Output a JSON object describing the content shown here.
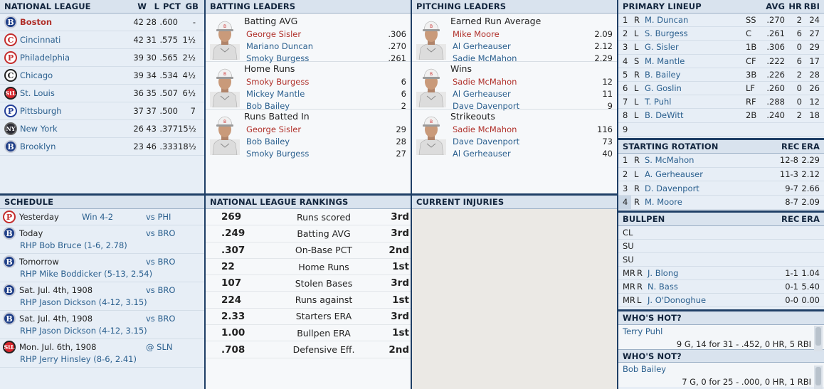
{
  "standings": {
    "title": "NATIONAL LEAGUE",
    "headers": {
      "w": "W",
      "l": "L",
      "pct": "PCT",
      "gb": "GB"
    },
    "teams": [
      {
        "name": "Boston",
        "logo": "B",
        "w": "42",
        "l": "28",
        "pct": ".600",
        "gb": "-"
      },
      {
        "name": "Cincinnati",
        "logo": "C",
        "w": "42",
        "l": "31",
        "pct": ".575",
        "gb": "1½"
      },
      {
        "name": "Philadelphia",
        "logo": "P",
        "w": "39",
        "l": "30",
        "pct": ".565",
        "gb": "2½"
      },
      {
        "name": "Chicago",
        "logo": "C",
        "w": "39",
        "l": "34",
        "pct": ".534",
        "gb": "4½"
      },
      {
        "name": "St. Louis",
        "logo": "StL",
        "w": "36",
        "l": "35",
        "pct": ".507",
        "gb": "6½"
      },
      {
        "name": "Pittsburgh",
        "logo": "P",
        "w": "37",
        "l": "37",
        "pct": ".500",
        "gb": "7"
      },
      {
        "name": "New York",
        "logo": "NY",
        "w": "26",
        "l": "43",
        "pct": ".377",
        "gb": "15½"
      },
      {
        "name": "Brooklyn",
        "logo": "B",
        "w": "23",
        "l": "46",
        "pct": ".333",
        "gb": "18½"
      }
    ]
  },
  "batting": {
    "title": "BATTING LEADERS",
    "cats": [
      {
        "name": "Batting AVG",
        "rows": [
          [
            "George Sisler",
            ".306"
          ],
          [
            "Mariano Duncan",
            ".270"
          ],
          [
            "Smoky Burgess",
            ".261"
          ]
        ]
      },
      {
        "name": "Home Runs",
        "rows": [
          [
            "Smoky Burgess",
            "6"
          ],
          [
            "Mickey Mantle",
            "6"
          ],
          [
            "Bob Bailey",
            "2"
          ]
        ]
      },
      {
        "name": "Runs Batted In",
        "rows": [
          [
            "George Sisler",
            "29"
          ],
          [
            "Bob Bailey",
            "28"
          ],
          [
            "Smoky Burgess",
            "27"
          ]
        ]
      }
    ]
  },
  "pitching": {
    "title": "PITCHING LEADERS",
    "cats": [
      {
        "name": "Earned Run Average",
        "rows": [
          [
            "Mike Moore",
            "2.09"
          ],
          [
            "Al Gerheauser",
            "2.12"
          ],
          [
            "Sadie McMahon",
            "2.29"
          ]
        ]
      },
      {
        "name": "Wins",
        "rows": [
          [
            "Sadie McMahon",
            "12"
          ],
          [
            "Al Gerheauser",
            "11"
          ],
          [
            "Dave Davenport",
            "9"
          ]
        ]
      },
      {
        "name": "Strikeouts",
        "rows": [
          [
            "Sadie McMahon",
            "116"
          ],
          [
            "Dave Davenport",
            "73"
          ],
          [
            "Al Gerheauser",
            "40"
          ]
        ]
      }
    ]
  },
  "lineup": {
    "title": "PRIMARY LINEUP",
    "headers": {
      "avg": "AVG",
      "hr": "HR",
      "rbi": "RBI"
    },
    "rows": [
      {
        "n": "1",
        "b": "R",
        "name": "M. Duncan",
        "pos": "SS",
        "avg": ".270",
        "hr": "2",
        "rbi": "24"
      },
      {
        "n": "2",
        "b": "L",
        "name": "S. Burgess",
        "pos": "C",
        "avg": ".261",
        "hr": "6",
        "rbi": "27"
      },
      {
        "n": "3",
        "b": "L",
        "name": "G. Sisler",
        "pos": "1B",
        "avg": ".306",
        "hr": "0",
        "rbi": "29"
      },
      {
        "n": "4",
        "b": "S",
        "name": "M. Mantle",
        "pos": "CF",
        "avg": ".222",
        "hr": "6",
        "rbi": "17"
      },
      {
        "n": "5",
        "b": "R",
        "name": "B. Bailey",
        "pos": "3B",
        "avg": ".226",
        "hr": "2",
        "rbi": "28"
      },
      {
        "n": "6",
        "b": "L",
        "name": "G. Goslin",
        "pos": "LF",
        "avg": ".260",
        "hr": "0",
        "rbi": "26"
      },
      {
        "n": "7",
        "b": "L",
        "name": "T. Puhl",
        "pos": "RF",
        "avg": ".288",
        "hr": "0",
        "rbi": "12"
      },
      {
        "n": "8",
        "b": "L",
        "name": "B. DeWitt",
        "pos": "2B",
        "avg": ".240",
        "hr": "2",
        "rbi": "18"
      },
      {
        "n": "9",
        "b": "",
        "name": "",
        "pos": "",
        "avg": "",
        "hr": "",
        "rbi": ""
      }
    ]
  },
  "rotation": {
    "title": "STARTING ROTATION",
    "headers": {
      "rec": "REC",
      "era": "ERA"
    },
    "rows": [
      {
        "n": "1",
        "t": "R",
        "name": "S. McMahon",
        "rec": "12-8",
        "era": "2.29"
      },
      {
        "n": "2",
        "t": "L",
        "name": "A. Gerheauser",
        "rec": "11-3",
        "era": "2.12"
      },
      {
        "n": "3",
        "t": "R",
        "name": "D. Davenport",
        "rec": "9-7",
        "era": "2.66"
      },
      {
        "n": "4",
        "t": "R",
        "name": "M. Moore",
        "rec": "8-7",
        "era": "2.09"
      }
    ]
  },
  "bullpen": {
    "title": "BULLPEN",
    "headers": {
      "rec": "REC",
      "era": "ERA"
    },
    "rows": [
      {
        "role": "CL",
        "t": "",
        "name": "",
        "rec": "",
        "era": ""
      },
      {
        "role": "SU",
        "t": "",
        "name": "",
        "rec": "",
        "era": ""
      },
      {
        "role": "SU",
        "t": "",
        "name": "",
        "rec": "",
        "era": ""
      },
      {
        "role": "MR",
        "t": "R",
        "name": "J. Blong",
        "rec": "1-1",
        "era": "1.04"
      },
      {
        "role": "MR",
        "t": "R",
        "name": "N. Bass",
        "rec": "0-1",
        "era": "5.40"
      },
      {
        "role": "MR",
        "t": "L",
        "name": "J. O'Donoghue",
        "rec": "0-0",
        "era": "0.00"
      }
    ]
  },
  "hot": {
    "title": "WHO'S HOT?",
    "name": "Terry Puhl",
    "line": "9 G, 14 for 31 - .452, 0 HR, 5 RBI"
  },
  "not": {
    "title": "WHO'S NOT?",
    "name": "Bob Bailey",
    "line": "7 G, 0 for 25 - .000, 0 HR, 1 RBI"
  },
  "schedule": {
    "title": "SCHEDULE",
    "rows": [
      {
        "logo": "P",
        "date": "Yesterday",
        "result": "Win 4-2",
        "opp": "vs PHI",
        "sub": ""
      },
      {
        "logo": "B",
        "date": "Today",
        "result": "",
        "opp": "vs BRO",
        "sub": "RHP Bob Bruce (1-6, 2.78)"
      },
      {
        "logo": "B",
        "date": "Tomorrow",
        "result": "",
        "opp": "vs BRO",
        "sub": "RHP Mike Boddicker (5-13, 2.54)"
      },
      {
        "logo": "B",
        "date": "Sat. Jul. 4th, 1908",
        "result": "",
        "opp": "vs BRO",
        "sub": "RHP Jason Dickson (4-12, 3.15)"
      },
      {
        "logo": "B",
        "date": "Sat. Jul. 4th, 1908",
        "result": "",
        "opp": "vs BRO",
        "sub": "RHP Jason Dickson (4-12, 3.15)"
      },
      {
        "logo": "StL",
        "date": "Mon. Jul. 6th, 1908",
        "result": "",
        "opp": "@ SLN",
        "sub": "RHP Jerry Hinsley (8-6, 2.41)"
      }
    ]
  },
  "rankings": {
    "title": "NATIONAL LEAGUE RANKINGS",
    "rows": [
      {
        "val": "269",
        "label": "Runs scored",
        "rank": "3rd"
      },
      {
        "val": ".249",
        "label": "Batting AVG",
        "rank": "3rd"
      },
      {
        "val": ".307",
        "label": "On-Base PCT",
        "rank": "2nd"
      },
      {
        "val": "22",
        "label": "Home Runs",
        "rank": "1st"
      },
      {
        "val": "107",
        "label": "Stolen Bases",
        "rank": "3rd"
      },
      {
        "val": "224",
        "label": "Runs against",
        "rank": "1st"
      },
      {
        "val": "2.33",
        "label": "Starters ERA",
        "rank": "3rd"
      },
      {
        "val": "1.00",
        "label": "Bullpen ERA",
        "rank": "1st"
      },
      {
        "val": ".708",
        "label": "Defensive Eff.",
        "rank": "2nd"
      }
    ]
  },
  "injuries": {
    "title": "CURRENT INJURIES"
  }
}
